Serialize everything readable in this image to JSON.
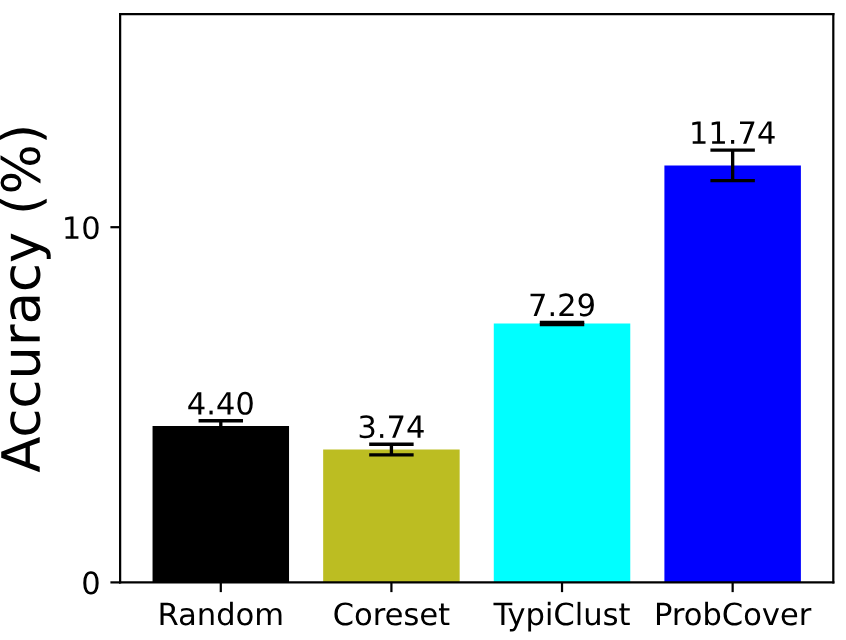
{
  "chart_data": {
    "type": "bar",
    "ylabel": "Accuracy (%)",
    "categories": [
      "Random",
      "Coreset",
      "TypiClust",
      "ProbCover"
    ],
    "values": [
      4.4,
      3.74,
      7.29,
      11.74
    ],
    "value_labels": [
      "4.40",
      "3.74",
      "7.29",
      "11.74"
    ],
    "errors": [
      0.15,
      0.15,
      0.03,
      0.43
    ],
    "colors": [
      "#000000",
      "#bcbd22",
      "#00ffff",
      "#0000ff"
    ],
    "ylim": [
      0,
      16
    ],
    "yticks": [
      0,
      10
    ],
    "grid": false,
    "legend": false
  }
}
